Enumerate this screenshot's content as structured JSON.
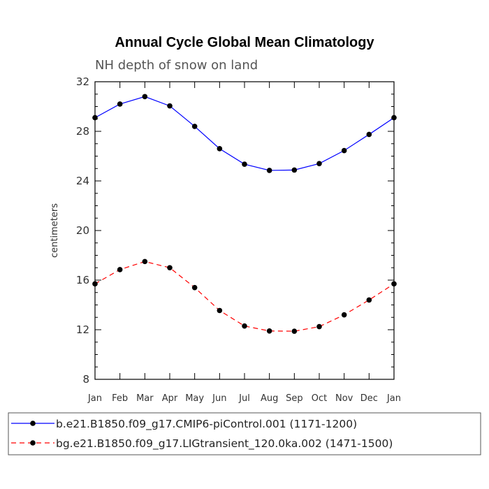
{
  "chart_data": {
    "type": "line",
    "title": "Annual Cycle Global Mean Climatology",
    "subtitle": "NH depth of snow on land",
    "ylabel": "centimeters",
    "xlabel": "",
    "categories": [
      "Jan",
      "Feb",
      "Mar",
      "Apr",
      "May",
      "Jun",
      "Jul",
      "Aug",
      "Sep",
      "Oct",
      "Nov",
      "Dec",
      "Jan"
    ],
    "ylim": [
      8,
      32
    ],
    "yticks": [
      8,
      12,
      16,
      20,
      24,
      28,
      32
    ],
    "grid": false,
    "legend_position": "bottom",
    "series": [
      {
        "name": "b.e21.B1850.f09_g17.CMIP6-piControl.001 (1171-1200)",
        "color": "#0000ff",
        "dash": "solid",
        "values": [
          29.1,
          30.2,
          30.8,
          30.05,
          28.4,
          26.6,
          25.35,
          24.85,
          24.88,
          25.4,
          26.45,
          27.75,
          29.1
        ]
      },
      {
        "name": "bg.e21.B1850.f09_g17.LIGtransient_120.0ka.002 (1471-1500)",
        "color": "#ff0000",
        "dash": "dashed",
        "values": [
          15.7,
          16.85,
          17.5,
          17.0,
          15.4,
          13.55,
          12.3,
          11.9,
          11.88,
          12.25,
          13.2,
          14.4,
          15.7
        ]
      }
    ]
  }
}
